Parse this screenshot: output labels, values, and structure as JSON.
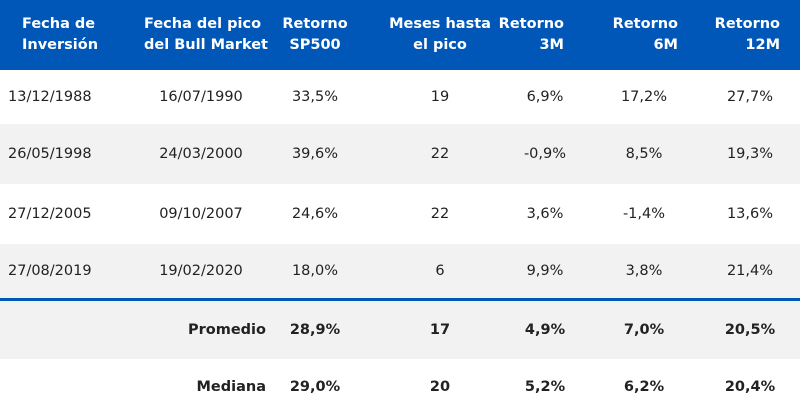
{
  "headers": [
    {
      "line1": "Fecha de",
      "line2": "Inversión"
    },
    {
      "line1": "Fecha del pico",
      "line2": "del Bull Market"
    },
    {
      "line1": "Retorno",
      "line2": "SP500"
    },
    {
      "line1": "Meses hasta",
      "line2": "el pico"
    },
    {
      "line1": "Retorno",
      "line2": "3M"
    },
    {
      "line1": "Retorno",
      "line2": "6M"
    },
    {
      "line1": "Retorno",
      "line2": "12M"
    }
  ],
  "rows": [
    [
      "13/12/1988",
      "16/07/1990",
      "33,5%",
      "19",
      "6,9%",
      "17,2%",
      "27,7%"
    ],
    [
      "26/05/1998",
      "24/03/2000",
      "39,6%",
      "22",
      "-0,9%",
      "8,5%",
      "19,3%"
    ],
    [
      "27/12/2005",
      "09/10/2007",
      "24,6%",
      "22",
      "3,6%",
      "-1,4%",
      "13,6%"
    ],
    [
      "27/08/2019",
      "19/02/2020",
      "18,0%",
      "6",
      "9,9%",
      "3,8%",
      "21,4%"
    ]
  ],
  "summary": [
    {
      "label": "Promedio",
      "values": [
        "28,9%",
        "17",
        "4,9%",
        "7,0%",
        "20,5%"
      ]
    },
    {
      "label": "Mediana",
      "values": [
        "29,0%",
        "20",
        "5,2%",
        "6,2%",
        "20,4%"
      ]
    }
  ],
  "colors": {
    "header_bg": "#0057b8",
    "stripe": "#f2f2f2",
    "divider": "#0057b8"
  }
}
